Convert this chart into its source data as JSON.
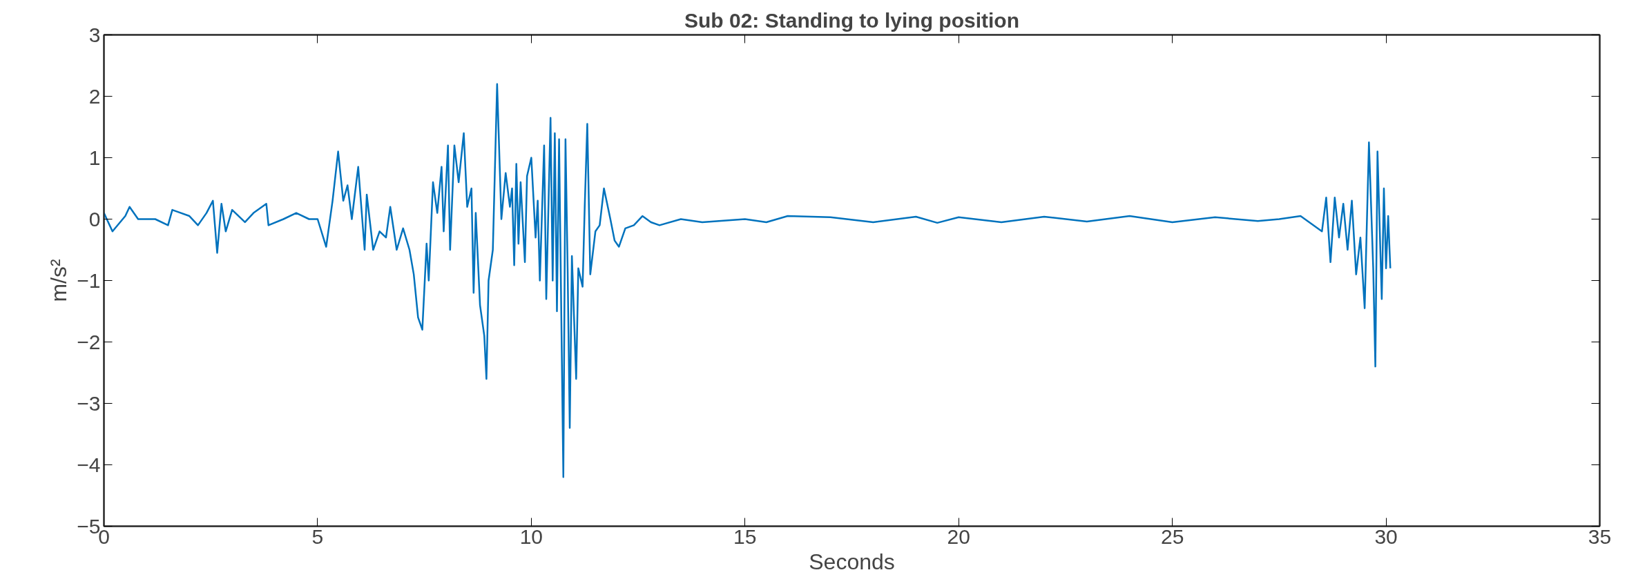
{
  "chart_data": {
    "type": "line",
    "title": "Sub 02: Standing to lying position",
    "xlabel": "Seconds",
    "ylabel": "m/s²",
    "xlim": [
      0,
      35
    ],
    "xticks": [
      0,
      5,
      10,
      15,
      20,
      25,
      30,
      35
    ],
    "ylim": [
      -5,
      3
    ],
    "yticks": [
      -5,
      -4,
      -3,
      -2,
      -1,
      0,
      1,
      2,
      3
    ],
    "grid": false,
    "marker": "none",
    "line_style": "solid",
    "series": [
      {
        "color": "#0072bd",
        "x": [
          0,
          0.2,
          0.5,
          0.6,
          0.8,
          1.2,
          1.5,
          1.6,
          2,
          2.2,
          2.4,
          2.55,
          2.65,
          2.75,
          2.85,
          3.0,
          3.3,
          3.5,
          3.8,
          3.85,
          4.2,
          4.5,
          4.8,
          5.0,
          5.2,
          5.35,
          5.48,
          5.6,
          5.7,
          5.8,
          5.95,
          6.1,
          6.15,
          6.3,
          6.45,
          6.6,
          6.7,
          6.85,
          7.0,
          7.15,
          7.25,
          7.35,
          7.45,
          7.55,
          7.6,
          7.7,
          7.8,
          7.9,
          7.95,
          8.05,
          8.1,
          8.2,
          8.3,
          8.42,
          8.5,
          8.6,
          8.65,
          8.7,
          8.8,
          8.9,
          8.95,
          9.0,
          9.1,
          9.2,
          9.3,
          9.4,
          9.5,
          9.55,
          9.6,
          9.65,
          9.7,
          9.75,
          9.85,
          9.9,
          10.0,
          10.1,
          10.15,
          10.2,
          10.3,
          10.35,
          10.45,
          10.5,
          10.55,
          10.6,
          10.65,
          10.75,
          10.8,
          10.85,
          10.9,
          10.95,
          11.05,
          11.1,
          11.2,
          11.25,
          11.31,
          11.38,
          11.5,
          11.6,
          11.7,
          11.85,
          11.95,
          12.05,
          12.2,
          12.4,
          12.6,
          12.8,
          13,
          13.5,
          14,
          15,
          15.5,
          16,
          17,
          18,
          19,
          19.5,
          20,
          21,
          22,
          23,
          24,
          25,
          26,
          27,
          27.5,
          28,
          28.5,
          28.6,
          28.7,
          28.8,
          28.9,
          29.0,
          29.1,
          29.2,
          29.3,
          29.4,
          29.5,
          29.6,
          29.7,
          29.75,
          29.8,
          29.9,
          29.95,
          30.0,
          30.05,
          30.1
        ],
        "values": [
          0.1,
          -0.2,
          0.05,
          0.2,
          0,
          0,
          -0.1,
          0.15,
          0.05,
          -0.1,
          0.1,
          0.3,
          -0.55,
          0.25,
          -0.2,
          0.15,
          -0.05,
          0.1,
          0.25,
          -0.1,
          0,
          0.1,
          0,
          0,
          -0.45,
          0.3,
          1.1,
          0.3,
          0.55,
          0,
          0.85,
          -0.5,
          0.4,
          -0.5,
          -0.2,
          -0.3,
          0.2,
          -0.5,
          -0.15,
          -0.5,
          -0.9,
          -1.6,
          -1.8,
          -0.4,
          -1.0,
          0.6,
          0.1,
          0.85,
          -0.2,
          1.2,
          -0.5,
          1.2,
          0.6,
          1.4,
          0.2,
          0.5,
          -1.2,
          0.1,
          -1.4,
          -1.9,
          -2.6,
          -1.0,
          -0.5,
          2.2,
          0,
          0.75,
          0.2,
          0.5,
          -0.75,
          0.9,
          -0.4,
          0.6,
          -0.7,
          0.7,
          1.0,
          -0.3,
          0.3,
          -1.0,
          1.2,
          -1.3,
          1.65,
          -1.0,
          1.4,
          -1.5,
          1.3,
          -4.2,
          1.3,
          -0.8,
          -3.4,
          -0.6,
          -2.6,
          -0.8,
          -1.1,
          0.2,
          1.55,
          -0.9,
          -0.2,
          -0.1,
          0.5,
          0,
          -0.35,
          -0.45,
          -0.15,
          -0.1,
          0.05,
          -0.05,
          -0.1,
          0,
          -0.05,
          0,
          -0.05,
          0.05,
          0.03,
          -0.05,
          0.04,
          -0.06,
          0.03,
          -0.05,
          0.04,
          -0.04,
          0.05,
          -0.05,
          0.03,
          -0.03,
          0,
          0.05,
          -0.2,
          0.35,
          -0.7,
          0.35,
          -0.3,
          0.25,
          -0.5,
          0.3,
          -0.9,
          -0.3,
          -1.45,
          1.25,
          -0.8,
          -2.4,
          1.1,
          -1.3,
          0.5,
          -0.8,
          0.05,
          -0.8
        ]
      }
    ]
  }
}
